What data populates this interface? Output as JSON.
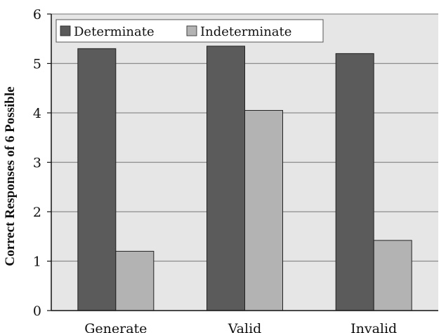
{
  "chart_data": {
    "type": "bar",
    "title": "",
    "xlabel": "",
    "ylabel": "Correct Responses of 6 Possible",
    "categories": [
      "Generate",
      "Valid",
      "Invalid"
    ],
    "series": [
      {
        "name": "Determinate",
        "values": [
          5.3,
          5.35,
          5.2
        ],
        "color": "#5b5b5b"
      },
      {
        "name": "Indeterminate",
        "values": [
          1.2,
          4.05,
          1.42
        ],
        "color": "#b3b3b3"
      }
    ],
    "ylim": [
      0,
      6
    ],
    "yticks": [
      "0",
      "1",
      "2",
      "3",
      "4",
      "5",
      "6"
    ],
    "grid": true,
    "legend_position": "top-left",
    "plot_background": "#e6e6e6",
    "grid_color": "#8c8c8c"
  }
}
